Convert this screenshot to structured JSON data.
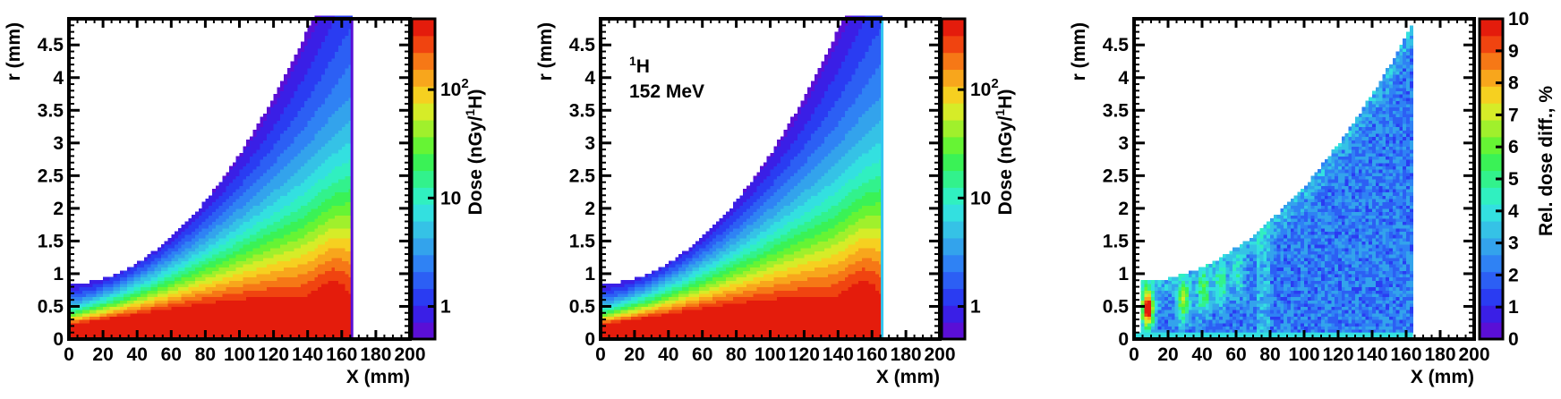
{
  "chart_data": [
    {
      "type": "heatmap",
      "title": "",
      "x": {
        "label": "X (mm)",
        "range": [
          0,
          200
        ],
        "ticks": [
          0,
          20,
          40,
          60,
          80,
          100,
          120,
          140,
          160,
          180,
          200
        ],
        "tick_labels": [
          "0",
          "20",
          "40",
          "60",
          "80",
          "100",
          "120",
          "140",
          "160",
          "180",
          "200"
        ]
      },
      "y": {
        "label": "r (mm)",
        "range": [
          0,
          4.9
        ],
        "ticks": [
          0,
          0.5,
          1,
          1.5,
          2,
          2.5,
          3,
          3.5,
          4,
          4.5
        ],
        "tick_labels": [
          "0",
          "0.5",
          "1",
          "1.5",
          "2",
          "2.5",
          "3",
          "3.5",
          "4",
          "4.5"
        ]
      },
      "colorbar": {
        "label": "Dose (nGy/¹H)",
        "scale": "log",
        "range": [
          0.5,
          450
        ],
        "ticks": [
          1,
          10,
          100
        ],
        "tick_labels": [
          "1",
          "10",
          "10²"
        ]
      },
      "annotations": [],
      "features": {
        "range_end_mm": 166,
        "entrance_edge_r_mm": 0.85,
        "edge_reaches_top_at_x_mm": 143
      },
      "grid": false,
      "legend": "none"
    },
    {
      "type": "heatmap",
      "title": "",
      "x": {
        "label": "X (mm)",
        "range": [
          0,
          200
        ],
        "ticks": [
          0,
          20,
          40,
          60,
          80,
          100,
          120,
          140,
          160,
          180,
          200
        ],
        "tick_labels": [
          "0",
          "20",
          "40",
          "60",
          "80",
          "100",
          "120",
          "140",
          "160",
          "180",
          "200"
        ]
      },
      "y": {
        "label": "r (mm)",
        "range": [
          0,
          4.9
        ],
        "ticks": [
          0,
          0.5,
          1,
          1.5,
          2,
          2.5,
          3,
          3.5,
          4,
          4.5
        ],
        "tick_labels": [
          "0",
          "0.5",
          "1",
          "1.5",
          "2",
          "2.5",
          "3",
          "3.5",
          "4",
          "4.5"
        ]
      },
      "colorbar": {
        "label": "Dose (nGy/¹H)",
        "scale": "log",
        "range": [
          0.5,
          450
        ],
        "ticks": [
          1,
          10,
          100
        ],
        "tick_labels": [
          "1",
          "10",
          "10²"
        ]
      },
      "annotations": [
        {
          "lines": [
            "¹H",
            "152 MeV"
          ]
        }
      ],
      "features": {
        "range_end_mm": 166,
        "entrance_edge_r_mm": 0.85,
        "edge_reaches_top_at_x_mm": 143
      },
      "grid": false,
      "legend": "none"
    },
    {
      "type": "heatmap",
      "title": "",
      "x": {
        "label": "X (mm)",
        "range": [
          0,
          200
        ],
        "ticks": [
          0,
          20,
          40,
          60,
          80,
          100,
          120,
          140,
          160,
          180,
          200
        ],
        "tick_labels": [
          "0",
          "20",
          "40",
          "60",
          "80",
          "100",
          "120",
          "140",
          "160",
          "180",
          "200"
        ]
      },
      "y": {
        "label": "r (mm)",
        "range": [
          0,
          4.9
        ],
        "ticks": [
          0,
          0.5,
          1,
          1.5,
          2,
          2.5,
          3,
          3.5,
          4,
          4.5
        ],
        "tick_labels": [
          "0",
          "0.5",
          "1",
          "1.5",
          "2",
          "2.5",
          "3",
          "3.5",
          "4",
          "4.5"
        ]
      },
      "colorbar": {
        "label": "Rel. dose diff., %",
        "scale": "linear",
        "range": [
          0,
          10
        ],
        "ticks": [
          0,
          1,
          2,
          3,
          4,
          5,
          6,
          7,
          8,
          9,
          10
        ],
        "tick_labels": [
          "0",
          "1",
          "2",
          "3",
          "4",
          "5",
          "6",
          "7",
          "8",
          "9",
          "10"
        ]
      },
      "annotations": [],
      "features": {
        "range_end_mm": 164,
        "hotspots_x_mm": [
          7,
          28,
          40,
          50,
          60
        ],
        "typical_diff_percent": 2
      },
      "grid": false,
      "legend": "none"
    }
  ]
}
